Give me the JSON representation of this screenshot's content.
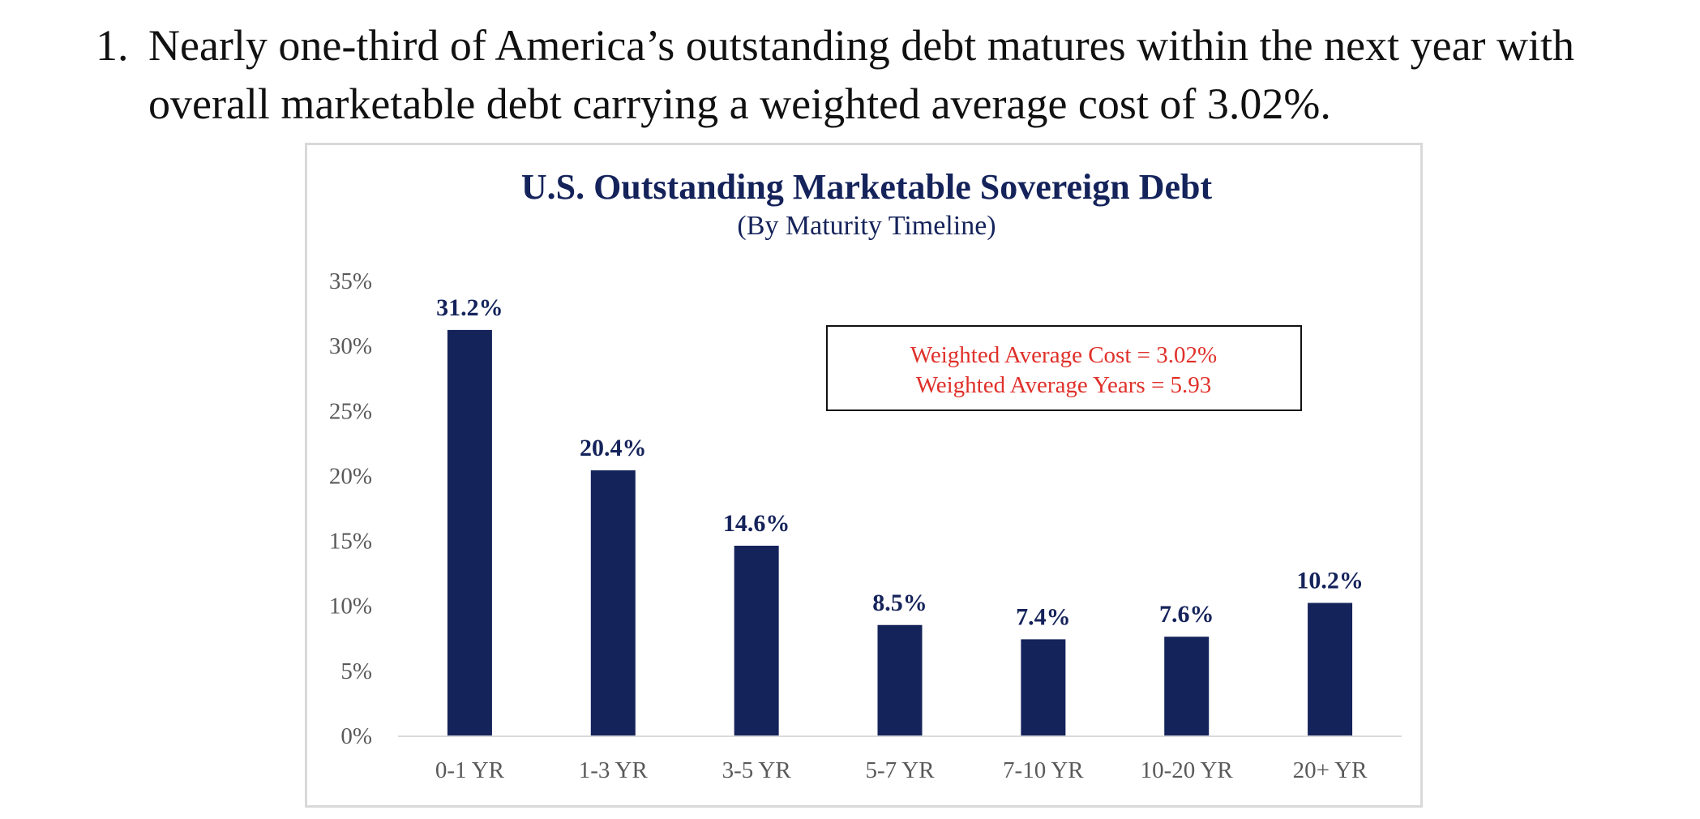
{
  "intro": {
    "number": "1.",
    "line1": "Nearly one-third of America’s outstanding debt matures within the next year with",
    "line2": "overall marketable debt carrying a weighted average cost of 3.02%."
  },
  "colors": {
    "bar": "#15235b",
    "title": "#15235b",
    "annotation_text": "#e0302a",
    "axis_text": "#595959",
    "gridline": "#d9d9d9"
  },
  "chart_data": {
    "type": "bar",
    "title": "U.S. Outstanding Marketable Sovereign Debt",
    "subtitle": "(By Maturity Timeline)",
    "categories": [
      "0-1 YR",
      "1-3 YR",
      "3-5 YR",
      "5-7 YR",
      "7-10 YR",
      "10-20 YR",
      "20+ YR"
    ],
    "values": [
      31.2,
      20.4,
      14.6,
      8.5,
      7.4,
      7.6,
      10.2
    ],
    "value_labels": [
      "31.2%",
      "20.4%",
      "14.6%",
      "8.5%",
      "7.4%",
      "7.6%",
      "10.2%"
    ],
    "ylim": [
      0,
      35
    ],
    "yticks": [
      0,
      5,
      10,
      15,
      20,
      25,
      30,
      35
    ],
    "ytick_labels": [
      "0%",
      "5%",
      "10%",
      "15%",
      "20%",
      "25%",
      "30%",
      "35%"
    ],
    "xlabel": "",
    "ylabel": "",
    "grid": false,
    "legend": "none",
    "annotation": {
      "line1": "Weighted Average Cost = 3.02%",
      "line2": "Weighted Average Years = 5.93"
    }
  }
}
